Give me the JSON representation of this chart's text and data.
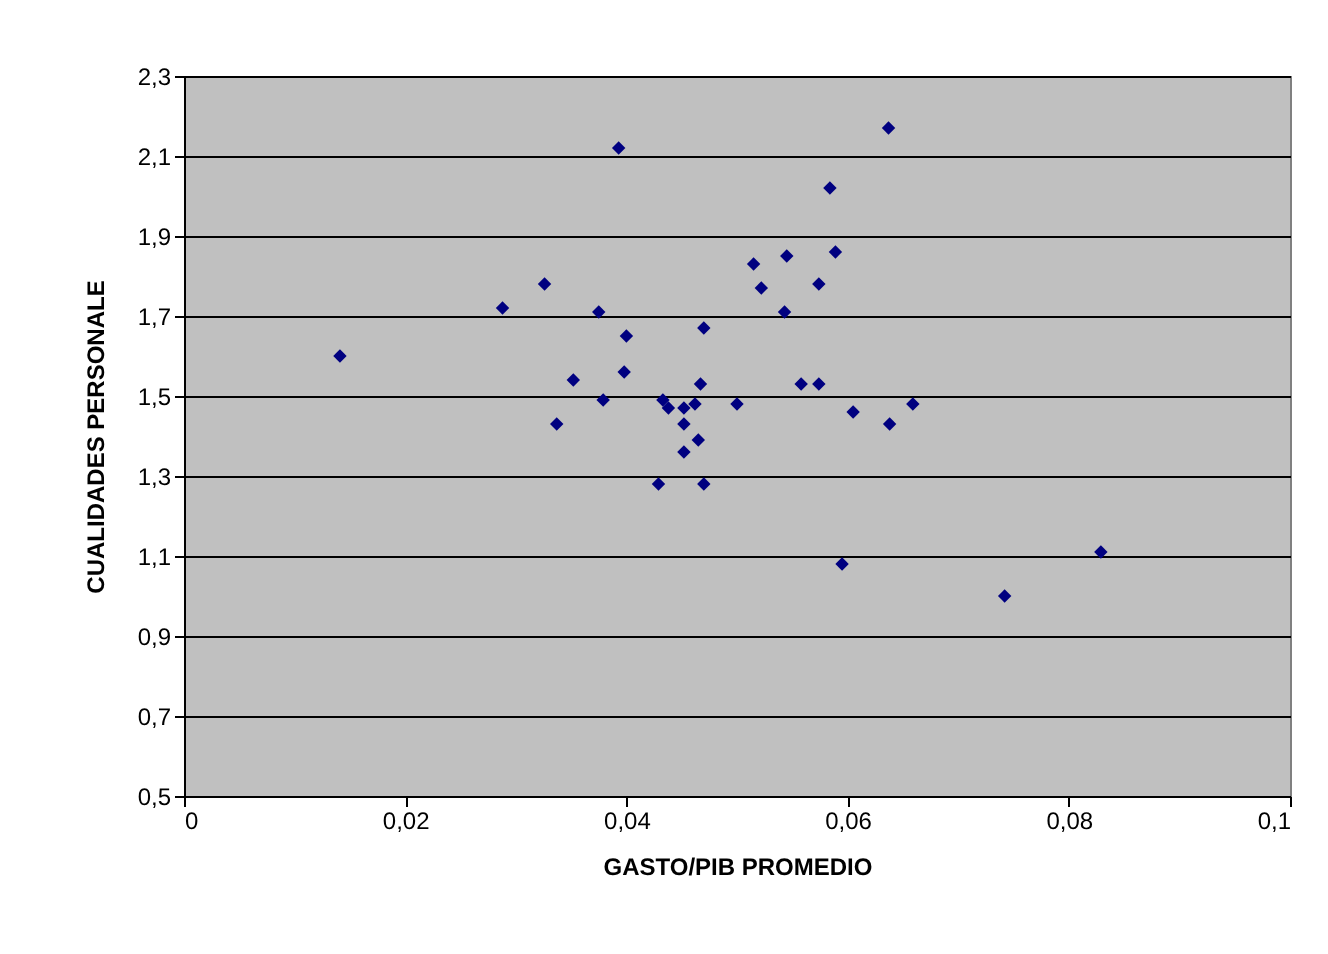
{
  "chart_data": {
    "type": "scatter",
    "xlabel": "GASTO/PIB PROMEDIO",
    "ylabel": "CUALIDADES PERSONALE",
    "x": [
      0.0141,
      0.0288,
      0.0326,
      0.0352,
      0.0337,
      0.0393,
      0.0375,
      0.04,
      0.0398,
      0.0379,
      0.0433,
      0.0438,
      0.0452,
      0.0462,
      0.0452,
      0.0467,
      0.047,
      0.0465,
      0.0452,
      0.0429,
      0.047,
      0.05,
      0.0515,
      0.0522,
      0.0545,
      0.0543,
      0.0558,
      0.0574,
      0.0574,
      0.0584,
      0.0589,
      0.0637,
      0.0605,
      0.0638,
      0.0659,
      0.0595,
      0.0742,
      0.0829
    ],
    "series": [
      {
        "color": "#000080",
        "values": [
          1.6,
          1.72,
          1.78,
          1.54,
          1.43,
          2.12,
          1.71,
          1.65,
          1.56,
          1.49,
          1.49,
          1.47,
          1.47,
          1.48,
          1.43,
          1.53,
          1.67,
          1.39,
          1.36,
          1.28,
          1.28,
          1.48,
          1.83,
          1.77,
          1.85,
          1.71,
          1.53,
          1.53,
          1.78,
          2.02,
          1.86,
          2.17,
          1.46,
          1.43,
          1.48,
          1.08,
          1.0,
          1.11
        ]
      }
    ],
    "xlim": [
      0,
      0.1
    ],
    "ylim": [
      0.5,
      2.3
    ],
    "xticks": [
      {
        "value": 0,
        "label": "0"
      },
      {
        "value": 0.02,
        "label": "0,02"
      },
      {
        "value": 0.04,
        "label": "0,04"
      },
      {
        "value": 0.06,
        "label": "0,06"
      },
      {
        "value": 0.08,
        "label": "0,08"
      },
      {
        "value": 0.1,
        "label": "0,1"
      }
    ],
    "yticks": [
      {
        "value": 0.5,
        "label": "0,5"
      },
      {
        "value": 0.7,
        "label": "0,7"
      },
      {
        "value": 0.9,
        "label": "0,9"
      },
      {
        "value": 1.1,
        "label": "1,1"
      },
      {
        "value": 1.3,
        "label": "1,3"
      },
      {
        "value": 1.5,
        "label": "1,5"
      },
      {
        "value": 1.7,
        "label": "1,7"
      },
      {
        "value": 1.9,
        "label": "1,9"
      },
      {
        "value": 2.1,
        "label": "2,1"
      },
      {
        "value": 2.3,
        "label": "2,3"
      }
    ],
    "grid": "y",
    "marker": "diamond"
  }
}
